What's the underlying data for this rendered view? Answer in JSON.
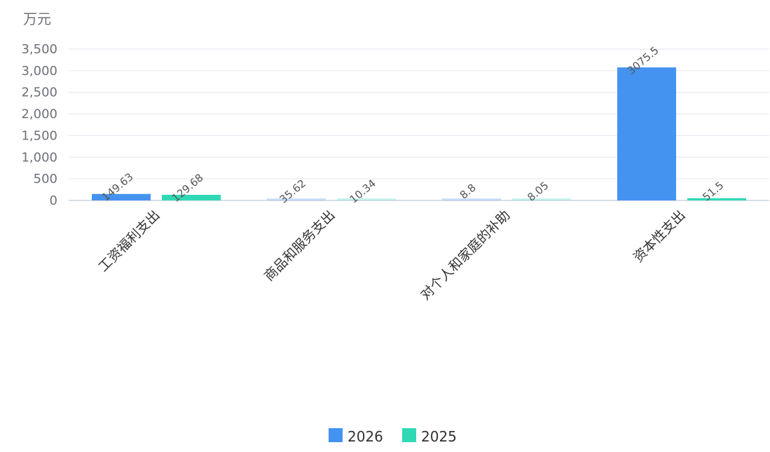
{
  "chart_data": {
    "type": "bar",
    "unit": "万元",
    "categories": [
      "工资福利支出",
      "商品和服务支出",
      "对个人和家庭的补助",
      "资本性支出"
    ],
    "series": [
      {
        "name": "2026",
        "values": [
          149.63,
          35.62,
          8.8,
          3075.5
        ],
        "color": "#4493f0"
      },
      {
        "name": "2025",
        "values": [
          129.68,
          10.34,
          8.05,
          51.5
        ],
        "color": "#2fd9b5"
      }
    ],
    "data_labels": [
      [
        "149.63",
        "35.62",
        "8.8",
        "3075.5"
      ],
      [
        "129.68",
        "10.34",
        "8.05",
        "51.5"
      ]
    ],
    "y_ticks": [
      {
        "value": 0,
        "label": "0"
      },
      {
        "value": 500,
        "label": "500"
      },
      {
        "value": 1000,
        "label": "1,000"
      },
      {
        "value": 1500,
        "label": "1,500"
      },
      {
        "value": 2000,
        "label": "2,000"
      },
      {
        "value": 2500,
        "label": "2,500"
      },
      {
        "value": 3000,
        "label": "3,000"
      },
      {
        "value": 3500,
        "label": "3,500"
      }
    ],
    "ylim": [
      0,
      3500
    ],
    "grid": true,
    "legend_position": "bottom-center",
    "colors": {
      "grid": "#e3e6ee",
      "axis": "#ccd3e0"
    }
  }
}
